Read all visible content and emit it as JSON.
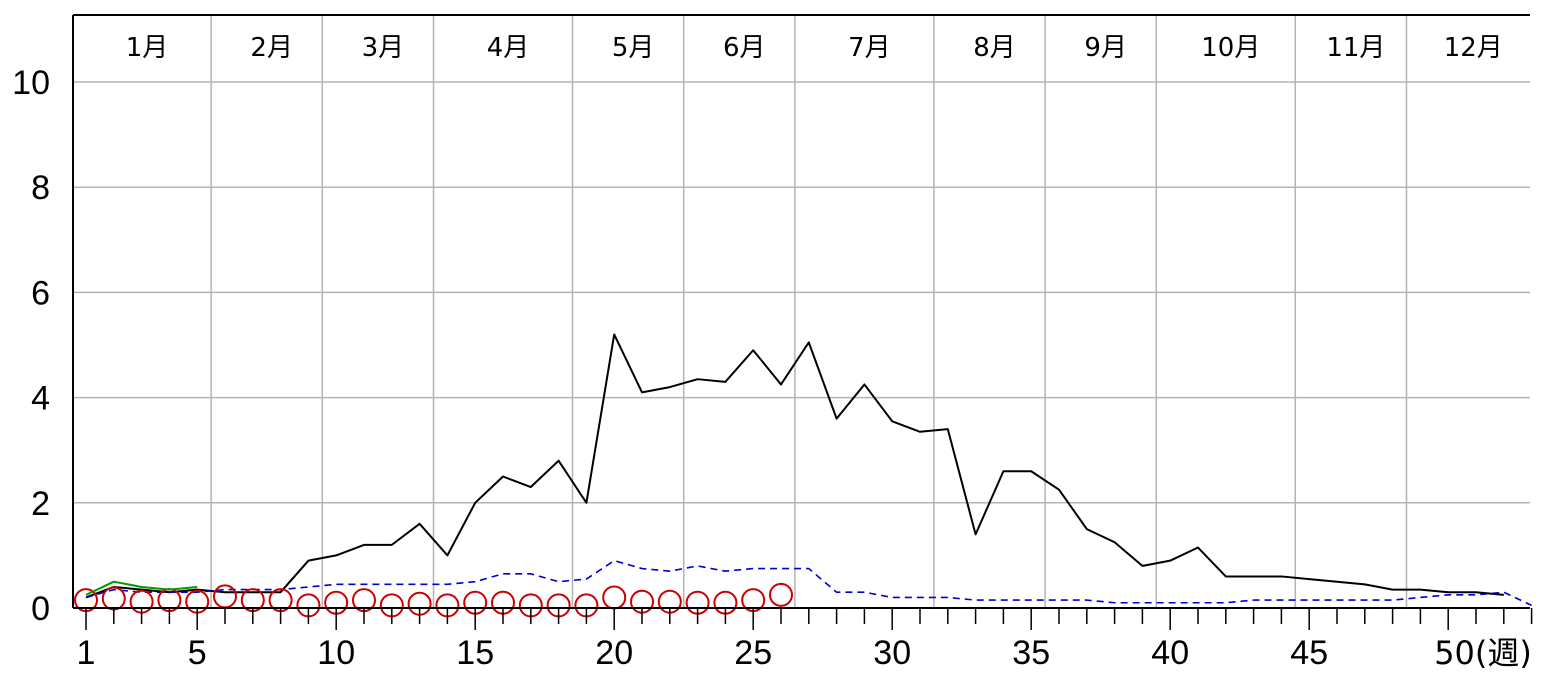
{
  "chart_data": {
    "type": "line",
    "title": "",
    "xlabel": "(週)",
    "ylabel": "",
    "xlim": [
      1,
      53
    ],
    "ylim": [
      0,
      10
    ],
    "grid": true,
    "months": [
      "1月",
      "2月",
      "3月",
      "4月",
      "5月",
      "6月",
      "7月",
      "8月",
      "9月",
      "10月",
      "11月",
      "12月"
    ],
    "month_boundaries": [
      5,
      9,
      13,
      18,
      22,
      26,
      31,
      35,
      39,
      44,
      48
    ],
    "y_ticks": [
      0,
      2,
      4,
      6,
      8,
      10
    ],
    "x_tick_labels": [
      {
        "week": 1,
        "label": "1"
      },
      {
        "week": 5,
        "label": "5"
      },
      {
        "week": 10,
        "label": "10"
      },
      {
        "week": 15,
        "label": "15"
      },
      {
        "week": 20,
        "label": "20"
      },
      {
        "week": 25,
        "label": "25"
      },
      {
        "week": 30,
        "label": "30"
      },
      {
        "week": 35,
        "label": "35"
      },
      {
        "week": 40,
        "label": "40"
      },
      {
        "week": 45,
        "label": "45"
      },
      {
        "week": 50,
        "label": "50(週)"
      }
    ],
    "series": [
      {
        "color": "#000000",
        "style": "solid",
        "x": [
          1,
          2,
          3,
          4,
          5,
          6,
          7,
          8,
          9,
          10,
          11,
          12,
          13,
          14,
          15,
          16,
          17,
          18,
          19,
          20,
          21,
          22,
          23,
          24,
          25,
          26,
          27,
          28,
          29,
          30,
          31,
          32,
          33,
          34,
          35,
          36,
          37,
          38,
          39,
          40,
          41,
          42,
          43,
          44,
          45,
          46,
          47,
          48,
          49,
          50,
          51,
          52
        ],
        "y": [
          0.2,
          0.4,
          0.35,
          0.3,
          0.35,
          0.3,
          0.3,
          0.3,
          0.9,
          1.0,
          1.2,
          1.2,
          1.6,
          1.0,
          2.0,
          2.5,
          2.3,
          2.8,
          2.0,
          5.2,
          4.1,
          4.2,
          4.35,
          4.3,
          4.9,
          4.25,
          5.05,
          3.6,
          4.25,
          3.55,
          3.35,
          3.4,
          1.4,
          2.6,
          2.6,
          2.25,
          1.5,
          1.25,
          0.8,
          0.9,
          1.15,
          0.6,
          0.6,
          0.6,
          0.55,
          0.5,
          0.45,
          0.35,
          0.35,
          0.3,
          0.3,
          0.25
        ]
      },
      {
        "color": "#0000cc",
        "style": "dashed",
        "x": [
          1,
          2,
          3,
          4,
          5,
          6,
          7,
          8,
          9,
          10,
          11,
          12,
          13,
          14,
          15,
          16,
          17,
          18,
          19,
          20,
          21,
          22,
          23,
          24,
          25,
          26,
          27,
          28,
          29,
          30,
          31,
          32,
          33,
          34,
          35,
          36,
          37,
          38,
          39,
          40,
          41,
          42,
          43,
          44,
          45,
          46,
          47,
          48,
          49,
          50,
          51,
          52,
          53
        ],
        "y": [
          0.2,
          0.35,
          0.3,
          0.3,
          0.3,
          0.35,
          0.35,
          0.35,
          0.4,
          0.45,
          0.45,
          0.45,
          0.45,
          0.45,
          0.5,
          0.65,
          0.65,
          0.5,
          0.55,
          0.9,
          0.75,
          0.7,
          0.8,
          0.7,
          0.75,
          0.75,
          0.75,
          0.3,
          0.3,
          0.2,
          0.2,
          0.2,
          0.15,
          0.15,
          0.15,
          0.15,
          0.15,
          0.1,
          0.1,
          0.1,
          0.1,
          0.1,
          0.15,
          0.15,
          0.15,
          0.15,
          0.15,
          0.15,
          0.2,
          0.25,
          0.25,
          0.3,
          0.05
        ]
      },
      {
        "color": "#cc0000",
        "style": "circles",
        "x": [
          1,
          2,
          3,
          4,
          5,
          6,
          7,
          8,
          9,
          10,
          11,
          12,
          13,
          14,
          15,
          16,
          17,
          18,
          19,
          20,
          21,
          22,
          23,
          24,
          25,
          26
        ],
        "y": [
          0.15,
          0.18,
          0.12,
          0.15,
          0.12,
          0.22,
          0.15,
          0.15,
          0.05,
          0.1,
          0.15,
          0.05,
          0.08,
          0.05,
          0.1,
          0.1,
          0.05,
          0.05,
          0.05,
          0.2,
          0.12,
          0.12,
          0.1,
          0.1,
          0.15,
          0.25
        ]
      },
      {
        "color": "#009900",
        "style": "solid",
        "x": [
          1,
          2,
          3,
          4,
          5
        ],
        "y": [
          0.25,
          0.5,
          0.4,
          0.35,
          0.4
        ]
      }
    ]
  }
}
